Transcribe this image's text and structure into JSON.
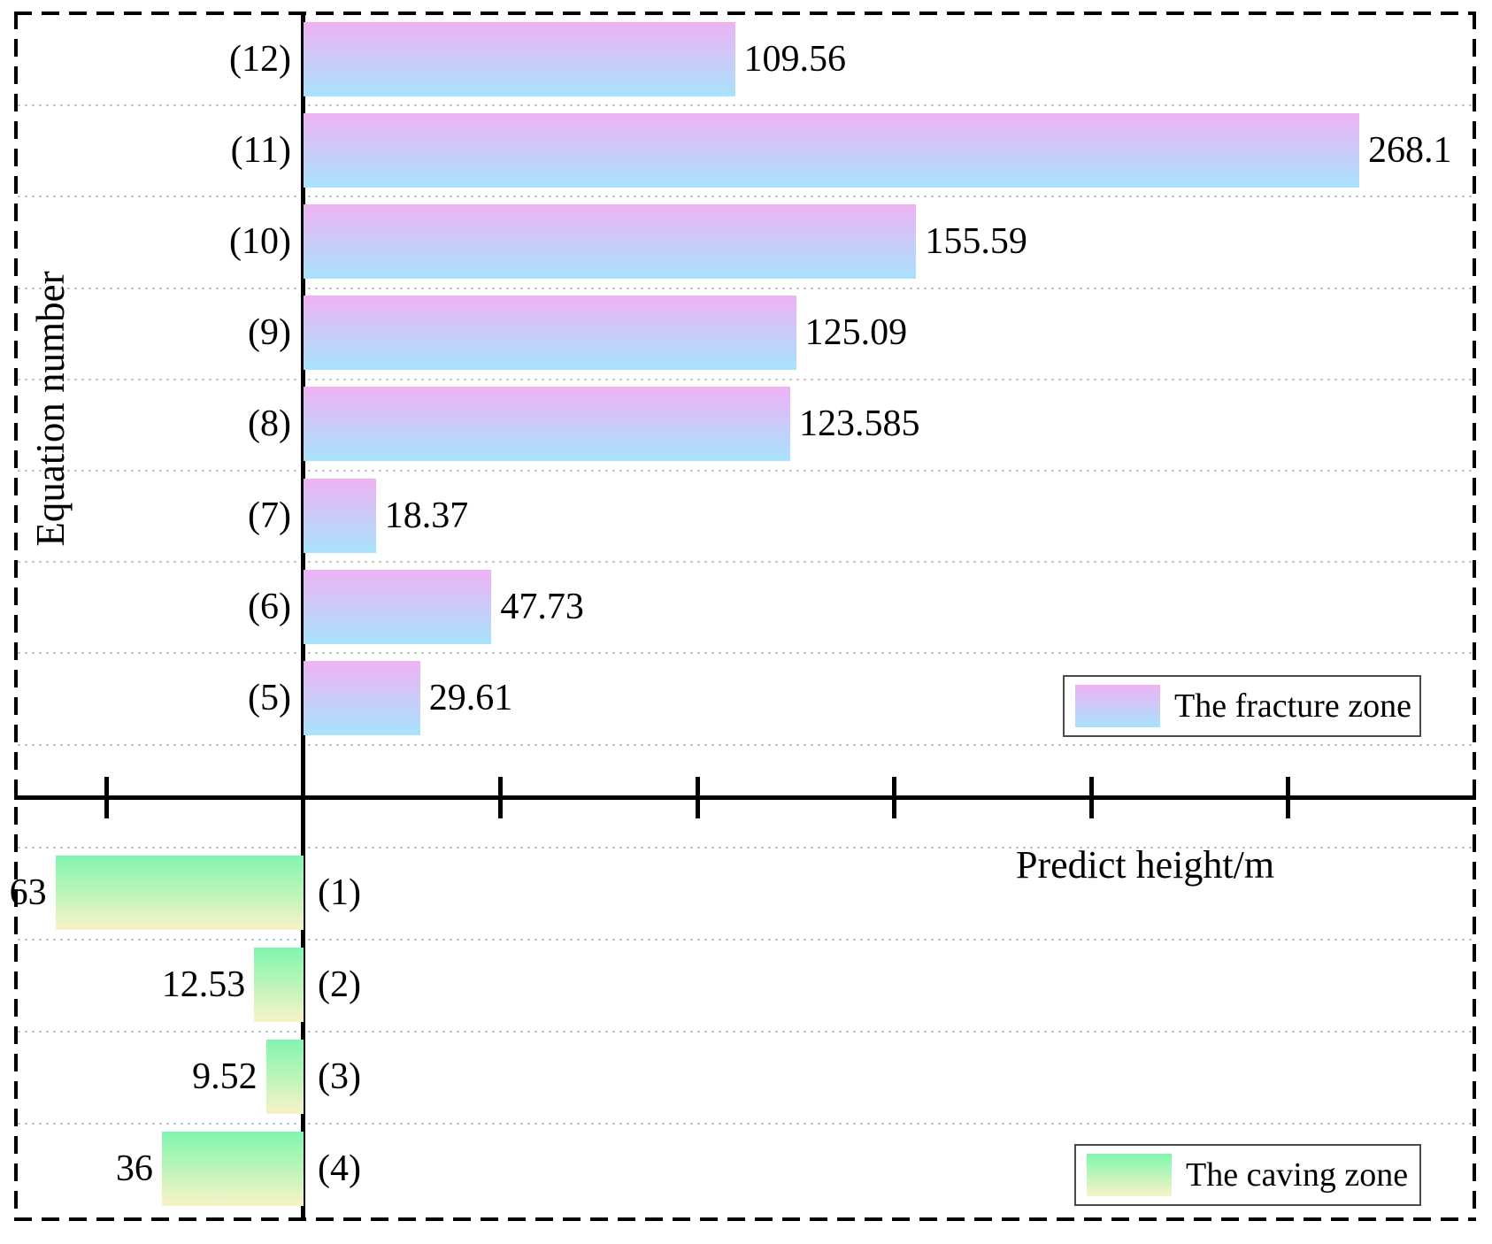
{
  "figure": {
    "background": "#ffffff",
    "border_style": "black dashed frame"
  },
  "chart_data": {
    "type": "bar",
    "orientation": "horizontal",
    "xlabel": "Predict height/m",
    "ylabel": "Equation number",
    "grid": "light dotted horizontal gridlines between category rows",
    "x_axis": {
      "tick_labels_visible": false,
      "estimated_tick_step_m": 50,
      "estimated_xlim_m": [
        -73,
        297
      ],
      "ticks_left_of_origin": 1,
      "ticks_right_of_origin": 5
    },
    "series": [
      {
        "name": "The fracture zone",
        "direction": "right-of-axis",
        "gradient": {
          "top": "#efb2f4",
          "bottom": "#a7e3fc"
        },
        "categories": [
          "(12)",
          "(11)",
          "(10)",
          "(9)",
          "(8)",
          "(7)",
          "(6)",
          "(5)"
        ],
        "values": [
          109.56,
          268.1,
          155.59,
          125.09,
          123.585,
          18.37,
          47.73,
          29.61
        ],
        "value_labels": [
          "109.56",
          "268.1",
          "155.59",
          "125.09",
          "123.585",
          "18.37",
          "47.73",
          "29.61"
        ]
      },
      {
        "name": "The caving zone",
        "direction": "left-of-axis",
        "gradient": {
          "top": "#80f6ae",
          "bottom": "#f8f3c6"
        },
        "categories": [
          "(1)",
          "(2)",
          "(3)",
          "(4)"
        ],
        "values": [
          63,
          12.53,
          9.52,
          36
        ],
        "value_labels": [
          "63",
          "12.53",
          "9.52",
          "36"
        ]
      }
    ],
    "legend": {
      "entries": [
        "The fracture zone",
        "The caving zone"
      ],
      "position": "right side, one box per zone"
    }
  }
}
